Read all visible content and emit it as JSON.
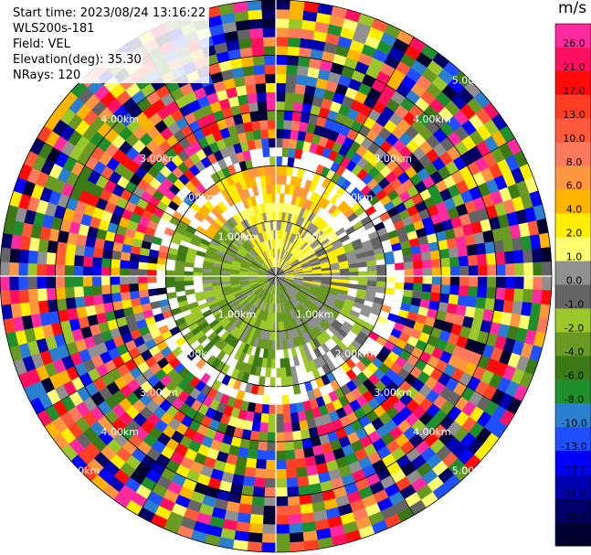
{
  "header": {
    "start_time": "Start time: 2023/08/24 13:16:22",
    "station": "WLS200s-181",
    "field": "Field: VEL",
    "elevation": "Elevation(deg): 35.30",
    "nrays": "NRays: 120"
  },
  "chart_data": {
    "type": "heatmap",
    "projection": "polar-ppi",
    "field": "VEL",
    "unit": "m/s",
    "n_rays": 120,
    "range_rings_km": [
      1.0,
      2.0,
      3.0,
      4.0,
      5.0
    ],
    "ring_labels": [
      "1.00km",
      "2.00km",
      "3.00km",
      "4.00km",
      "5.00km"
    ],
    "colorbar": {
      "unit": "m/s",
      "ticks": [
        "26.0",
        "21.0",
        "17.0",
        "13.0",
        "10.0",
        "8.0",
        "6.0",
        "4.0",
        "2.0",
        "1.0",
        "0.0",
        "-1.0",
        "-2.0",
        "-4.0",
        "-6.0",
        "-8.0",
        "-10.0",
        "-13.0",
        "-17.0",
        "-21.0",
        "-26.0",
        "-30.0"
      ],
      "colors": [
        "#ff2aa0",
        "#ff1060",
        "#ff0a0a",
        "#ff3e24",
        "#ff5a3a",
        "#ff7a5a",
        "#ff9640",
        "#ffb400",
        "#ffee00",
        "#ffff70",
        "#909090",
        "#646464",
        "#9bc72a",
        "#6a9a22",
        "#3c7a18",
        "#1f8f2e",
        "#2a7fd0",
        "#1e50ff",
        "#0000ff",
        "#0000b0",
        "#000066",
        "#000033"
      ]
    },
    "pattern": "near-range coherent: yellow/orange and gray near radar, green to the south-west; beyond ~2 km noisy mixed velocities at all ranges"
  }
}
